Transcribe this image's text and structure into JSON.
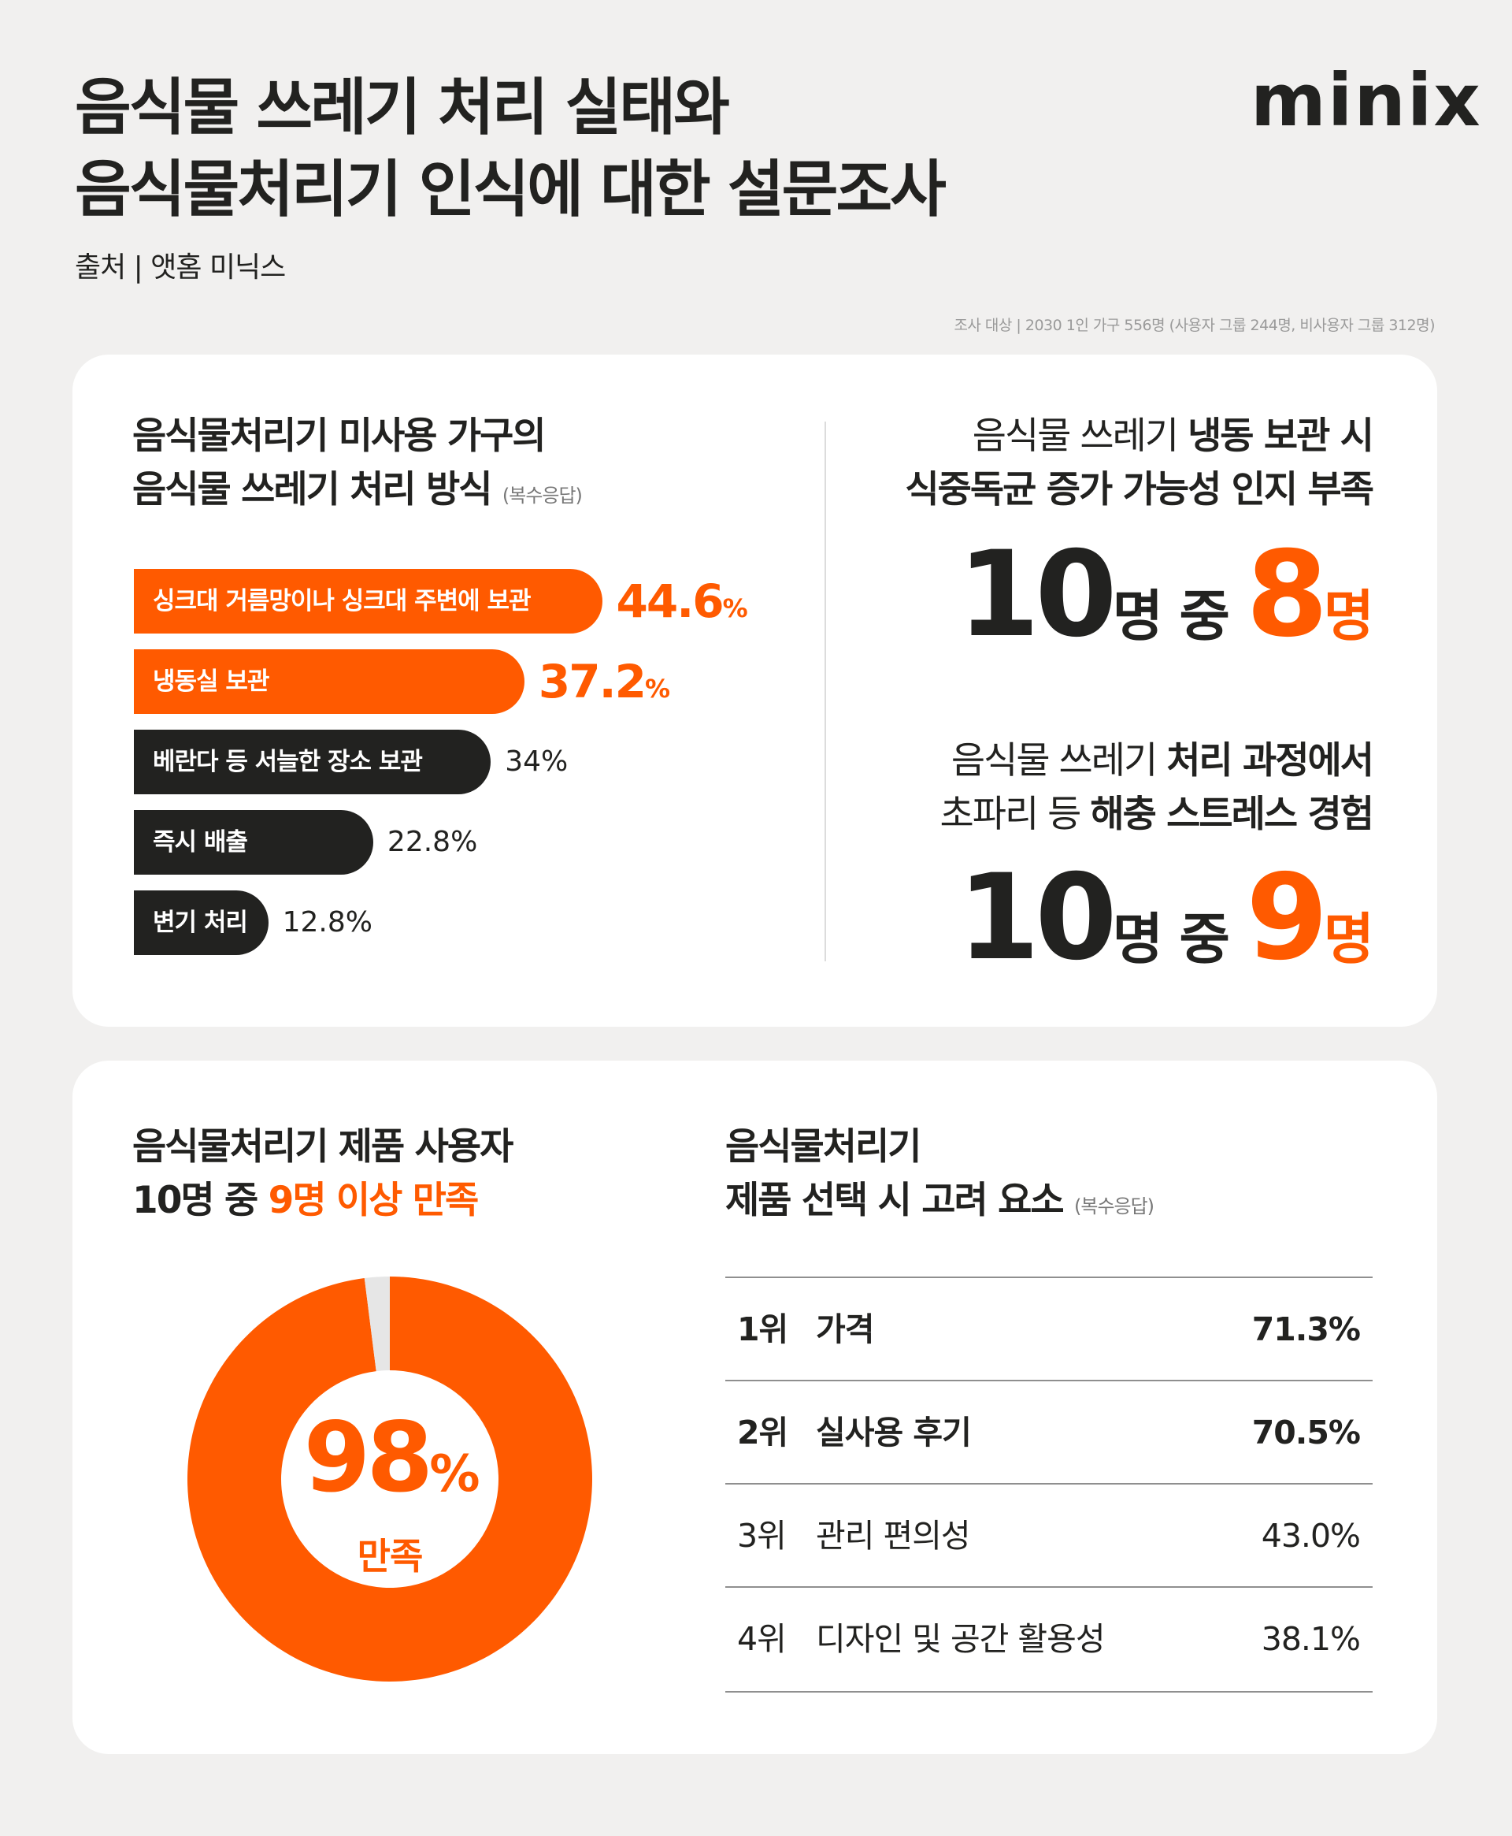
{
  "header": {
    "title_line1": "음식물 쓰레기 처리 실태와",
    "title_line2": "음식물처리기 인식에 대한 설문조사",
    "logo": "minix",
    "source": "출처 | 앳홈 미닉스",
    "survey_note": "조사 대상 | 2030 1인 가구 556명 (사용자 그룹 244명, 비사용자 그룹 312명)"
  },
  "colors": {
    "accent": "#ff5a00",
    "dark": "#222220",
    "background": "#f1f0ef",
    "card": "#ffffff",
    "donut_rest": "#e6e6e6"
  },
  "card1": {
    "left_heading_line1": "음식물처리기 미사용 가구의",
    "left_heading_line2": "음식물 쓰레기 처리 방식",
    "left_heading_note": "(복수응답)",
    "stat1": {
      "line1_regular": "음식물 쓰레기 ",
      "line1_bold": "냉동 보관 시",
      "line2": "식중독균 증가 가능성 인지 부족",
      "total": "10",
      "unit1": "명 중 ",
      "count": "8",
      "unit2": "명"
    },
    "stat2": {
      "line1_regular": "음식물 쓰레기 ",
      "line1_bold": "처리 과정에서",
      "line2_regular": "초파리 등 ",
      "line2_bold": "해충 스트레스 경험",
      "total": "10",
      "unit1": "명 중 ",
      "count": "9",
      "unit2": "명"
    }
  },
  "card2": {
    "left_heading_line1": "음식물처리기 제품 사용자",
    "left_heading_line2_prefix": "10명 중 ",
    "left_heading_line2_highlight": "9명 이상 만족",
    "donut_value": "98",
    "donut_unit": "%",
    "donut_label": "만족",
    "right_heading_line1": "음식물처리기",
    "right_heading_line2": "제품 선택 시 고려 요소",
    "right_heading_note": "(복수응답)",
    "ranking": [
      {
        "rank": "1위",
        "label": "가격",
        "value": "71.3%",
        "bold": true
      },
      {
        "rank": "2위",
        "label": "실사용 후기",
        "value": "70.5%",
        "bold": true
      },
      {
        "rank": "3위",
        "label": "관리 편의성",
        "value": "43.0%",
        "bold": false
      },
      {
        "rank": "4위",
        "label": "디자인 및 공간 활용성",
        "value": "38.1%",
        "bold": false
      }
    ]
  },
  "chart_data": [
    {
      "type": "bar",
      "orientation": "horizontal",
      "categories": [
        "싱크대 거름망이나 싱크대 주변에 보관",
        "냉동실 보관",
        "베란다 등 서늘한 장소 보관",
        "즉시 배출",
        "변기 처리"
      ],
      "values": [
        44.6,
        37.2,
        34,
        22.8,
        12.8
      ],
      "labels": [
        "44.6",
        "37.2",
        "34%",
        "22.8%",
        "12.8%"
      ],
      "highlighted": [
        true,
        true,
        false,
        false,
        false
      ],
      "unit": "%"
    },
    {
      "type": "pie",
      "donut": true,
      "slices": [
        {
          "label": "만족",
          "value": 98
        },
        {
          "label": "",
          "value": 2
        }
      ]
    }
  ]
}
